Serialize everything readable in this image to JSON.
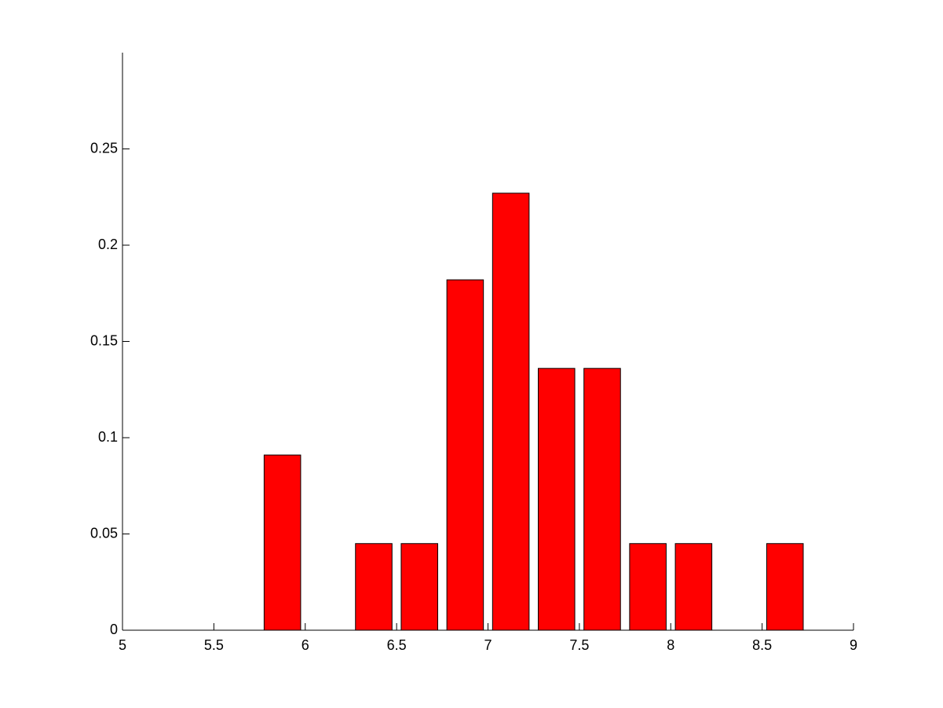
{
  "chart_data": {
    "type": "bar",
    "x": [
      5.875,
      6.375,
      6.625,
      6.875,
      7.125,
      7.375,
      7.625,
      7.875,
      8.125,
      8.625
    ],
    "values": [
      0.091,
      0.045,
      0.045,
      0.182,
      0.227,
      0.136,
      0.136,
      0.045,
      0.045,
      0.045
    ],
    "color": "#ff0000",
    "xlim": [
      5,
      9
    ],
    "xticks": [
      5,
      5.5,
      6,
      6.5,
      7,
      7.5,
      8,
      8.5,
      9
    ],
    "ylim": [
      0,
      0.3
    ],
    "yticks": [
      0,
      0.05,
      0.1,
      0.15,
      0.2,
      0.25
    ],
    "grid": false
  }
}
